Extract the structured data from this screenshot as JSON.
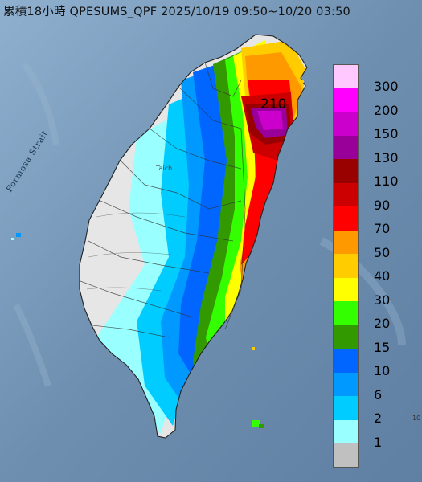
{
  "header": {
    "title": "累積18小時 QPESUMS_QPF 2025/10/19 09:50~10/20 03:50"
  },
  "map": {
    "strait_label": "Formosa Strait",
    "city_label": "Taich",
    "max_value_label": "210",
    "corner_mark": "10",
    "colors": {
      "sea": "#6f8fb0",
      "land_no_rain": "#e6e6e6"
    }
  },
  "legend": {
    "items": [
      {
        "label": "300",
        "color": "#ffc8ff"
      },
      {
        "label": "200",
        "color": "#ff00ff"
      },
      {
        "label": "150",
        "color": "#cc00cc"
      },
      {
        "label": "130",
        "color": "#990099"
      },
      {
        "label": "110",
        "color": "#990000"
      },
      {
        "label": "90",
        "color": "#cc0000"
      },
      {
        "label": "70",
        "color": "#ff0000"
      },
      {
        "label": "50",
        "color": "#ff9900"
      },
      {
        "label": "40",
        "color": "#ffcc00"
      },
      {
        "label": "30",
        "color": "#ffff00"
      },
      {
        "label": "20",
        "color": "#33ff00"
      },
      {
        "label": "15",
        "color": "#339900"
      },
      {
        "label": "10",
        "color": "#0066ff"
      },
      {
        "label": "6",
        "color": "#0099ff"
      },
      {
        "label": "2",
        "color": "#00ccff"
      },
      {
        "label": "1",
        "color": "#99ffff"
      },
      {
        "label": "",
        "color": "#c0c0c0"
      }
    ]
  }
}
